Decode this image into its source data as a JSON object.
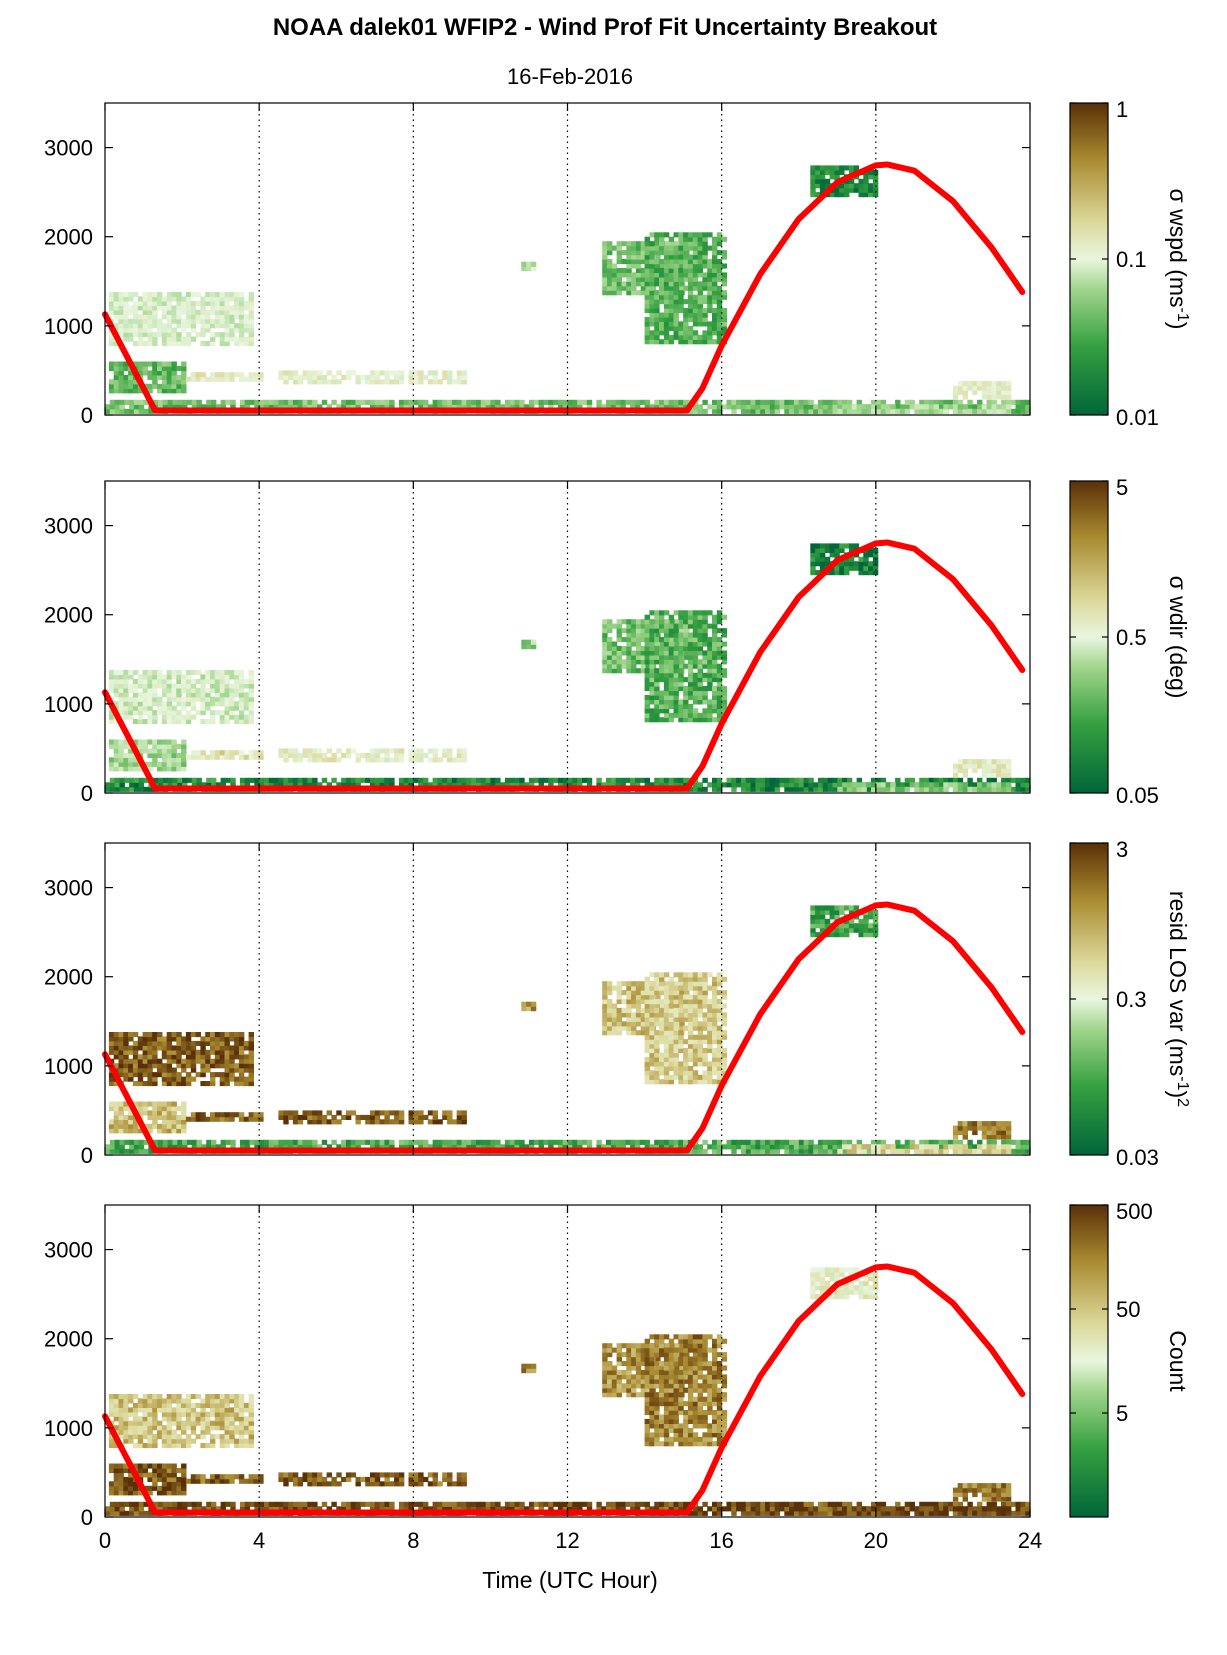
{
  "figure": {
    "title": "NOAA dalek01 WFIP2 - Wind Prof Fit Uncertainty Breakout",
    "subtitle": "16-Feb-2016",
    "xlabel": "Time (UTC Hour)"
  },
  "colors": {
    "boundary_line": "#ff0000",
    "colormap": [
      "#00663a",
      "#35a040",
      "#9fd48a",
      "#e9f6df",
      "#dcd89a",
      "#a98a30",
      "#5a3008"
    ],
    "gridline": "#000000"
  },
  "chart_data": [
    {
      "type": "heatmap",
      "panel": "wspd",
      "x_range": [
        0,
        24
      ],
      "y_range": [
        0,
        3500
      ],
      "x_ticks": [
        "0",
        "4",
        "8",
        "12",
        "16",
        "20",
        "24"
      ],
      "y_ticks": [
        "0",
        "1000",
        "2000",
        "3000"
      ],
      "grid": "vertical dotted at 4,8,12,16,20",
      "colorbar": {
        "label": "σ wspd (ms-1)",
        "label_parts": [
          "σ wspd (ms",
          "-1",
          ")"
        ],
        "ticks": [
          "0.01",
          "0.1",
          "1"
        ],
        "scale": "log",
        "range": [
          0.01,
          1
        ]
      },
      "line": {
        "name": "",
        "x": [
          0,
          1.3,
          15.1,
          15.5,
          16,
          17,
          18,
          19,
          20,
          20.3,
          21,
          22,
          23,
          23.8
        ],
        "y": [
          1130,
          50,
          50,
          300,
          780,
          1580,
          2200,
          2610,
          2800,
          2810,
          2740,
          2400,
          1880,
          1380
        ]
      }
    },
    {
      "type": "heatmap",
      "panel": "wdir",
      "x_range": [
        0,
        24
      ],
      "y_range": [
        0,
        3500
      ],
      "x_ticks": [
        "0",
        "4",
        "8",
        "12",
        "16",
        "20",
        "24"
      ],
      "y_ticks": [
        "0",
        "1000",
        "2000",
        "3000"
      ],
      "grid": "vertical dotted at 4,8,12,16,20",
      "colorbar": {
        "label": "σ wdir (deg)",
        "label_parts": [
          "σ wdir (deg)",
          "",
          ""
        ],
        "ticks": [
          "0.05",
          "0.5",
          "5"
        ],
        "scale": "log",
        "range": [
          0.05,
          5
        ]
      },
      "line": {
        "name": "",
        "x": [
          0,
          1.3,
          15.1,
          15.5,
          16,
          17,
          18,
          19,
          20,
          20.3,
          21,
          22,
          23,
          23.8
        ],
        "y": [
          1130,
          50,
          50,
          300,
          780,
          1580,
          2200,
          2610,
          2800,
          2810,
          2740,
          2400,
          1880,
          1380
        ]
      }
    },
    {
      "type": "heatmap",
      "panel": "resid LOS var",
      "x_range": [
        0,
        24
      ],
      "y_range": [
        0,
        3500
      ],
      "x_ticks": [
        "0",
        "4",
        "8",
        "12",
        "16",
        "20",
        "24"
      ],
      "y_ticks": [
        "0",
        "1000",
        "2000",
        "3000"
      ],
      "grid": "vertical dotted at 4,8,12,16,20",
      "colorbar": {
        "label": "resid LOS var (ms-1)2",
        "label_parts": [
          "resid LOS var (ms",
          "-1",
          ")2"
        ],
        "ticks": [
          "0.03",
          "0.3",
          "3"
        ],
        "scale": "log",
        "range": [
          0.03,
          3
        ]
      },
      "line": {
        "name": "",
        "x": [
          0,
          1.3,
          15.1,
          15.5,
          16,
          17,
          18,
          19,
          20,
          20.3,
          21,
          22,
          23,
          23.8
        ],
        "y": [
          1130,
          50,
          50,
          300,
          780,
          1580,
          2200,
          2610,
          2800,
          2810,
          2740,
          2400,
          1880,
          1380
        ]
      }
    },
    {
      "type": "heatmap",
      "panel": "Count",
      "x_range": [
        0,
        24
      ],
      "y_range": [
        0,
        3500
      ],
      "x_ticks": [
        "0",
        "4",
        "8",
        "12",
        "16",
        "20",
        "24"
      ],
      "y_ticks": [
        "0",
        "1000",
        "2000",
        "3000"
      ],
      "grid": "vertical dotted at 4,8,12,16,20",
      "colorbar": {
        "label": "Count",
        "label_parts": [
          "Count",
          "",
          ""
        ],
        "ticks": [
          "5",
          "50",
          "500"
        ],
        "scale": "log",
        "range": [
          0.5,
          500
        ]
      },
      "line": {
        "name": "",
        "x": [
          0,
          1.3,
          15.1,
          15.5,
          16,
          17,
          18,
          19,
          20,
          20.3,
          21,
          22,
          23,
          23.8
        ],
        "y": [
          1130,
          50,
          50,
          300,
          780,
          1580,
          2200,
          2610,
          2800,
          2810,
          2740,
          2400,
          1880,
          1380
        ]
      }
    }
  ],
  "data_regions": [
    {
      "x0": 0.0,
      "x1": 24.0,
      "y0": 20,
      "y1": 130,
      "v": [
        0.25,
        0.1,
        0.2,
        0.95
      ]
    },
    {
      "x0": 0.1,
      "x1": 2.1,
      "y0": 250,
      "y1": 600,
      "v": [
        0.22,
        0.35,
        0.72,
        0.93
      ]
    },
    {
      "x0": 2.1,
      "x1": 4.1,
      "y0": 380,
      "y1": 480,
      "v": [
        0.55,
        0.6,
        0.9,
        0.9
      ]
    },
    {
      "x0": 4.5,
      "x1": 9.3,
      "y0": 350,
      "y1": 470,
      "v": [
        0.52,
        0.55,
        0.93,
        0.92
      ]
    },
    {
      "x0": 0.1,
      "x1": 3.8,
      "y0": 780,
      "y1": 1350,
      "v": [
        0.45,
        0.45,
        0.92,
        0.7
      ]
    },
    {
      "x0": 10.8,
      "x1": 11.1,
      "y0": 1620,
      "y1": 1700,
      "v": [
        0.38,
        0.35,
        0.8,
        0.85
      ]
    },
    {
      "x0": 12.9,
      "x1": 15.1,
      "y0": 1350,
      "y1": 1950,
      "v": [
        0.25,
        0.27,
        0.7,
        0.82
      ]
    },
    {
      "x0": 14.0,
      "x1": 16.1,
      "y0": 800,
      "y1": 2050,
      "v": [
        0.2,
        0.22,
        0.68,
        0.85
      ]
    },
    {
      "x0": 18.3,
      "x1": 20.0,
      "y0": 2450,
      "y1": 2800,
      "v": [
        0.08,
        0.08,
        0.18,
        0.55
      ]
    },
    {
      "x0": 19.0,
      "x1": 23.4,
      "y0": 20,
      "y1": 120,
      "v": [
        0.35,
        0.3,
        0.65,
        0.97
      ]
    },
    {
      "x0": 22.0,
      "x1": 23.5,
      "y0": 180,
      "y1": 380,
      "v": [
        0.52,
        0.55,
        0.85,
        0.85
      ]
    }
  ]
}
